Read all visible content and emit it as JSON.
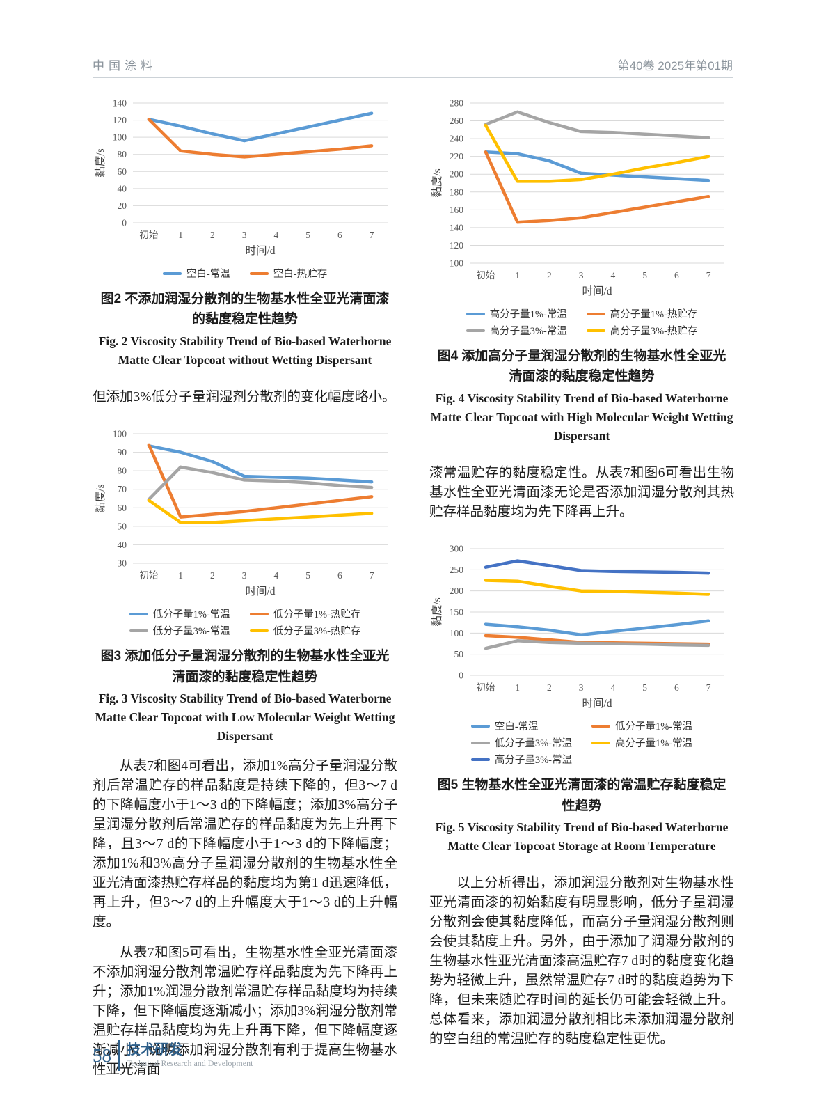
{
  "header": {
    "journal": "中国涂料",
    "issue": "第40卷  2025年第01期"
  },
  "chart_data": [
    {
      "id": "fig2",
      "type": "line",
      "ylabel": "黏度/s",
      "xlabel": "时间/d",
      "categories": [
        "初始",
        "1",
        "2",
        "3",
        "4",
        "5",
        "6",
        "7"
      ],
      "ylim": [
        0,
        140
      ],
      "ytick": 20,
      "grid": true,
      "legend_position": "bottom",
      "legend_cols": 2,
      "series": [
        {
          "name": "空白-常温",
          "color": "#5B9BD5",
          "values": [
            121,
            113,
            104,
            96,
            104,
            112,
            120,
            128
          ]
        },
        {
          "name": "空白-热贮存",
          "color": "#ED7D31",
          "values": [
            121,
            84,
            80,
            77,
            80,
            83,
            86,
            90
          ]
        }
      ],
      "caption_zh": "图2  不添加润湿分散剂的生物基水性全亚光清面漆的黏度稳定性趋势",
      "caption_en": "Fig. 2   Viscosity Stability Trend of Bio-based Waterborne Matte Clear Topcoat without Wetting Dispersant"
    },
    {
      "id": "fig3",
      "type": "line",
      "ylabel": "黏度/s",
      "xlabel": "时间/d",
      "categories": [
        "初始",
        "1",
        "2",
        "3",
        "4",
        "5",
        "6",
        "7"
      ],
      "ylim": [
        30,
        100
      ],
      "ytick": 10,
      "grid": true,
      "legend_position": "bottom",
      "legend_cols": 2,
      "series": [
        {
          "name": "低分子量1%-常温",
          "color": "#5B9BD5",
          "values": [
            93.5,
            90,
            85,
            77,
            76.5,
            76,
            75,
            74
          ]
        },
        {
          "name": "低分子量1%-热贮存",
          "color": "#ED7D31",
          "values": [
            94,
            55,
            56.5,
            58,
            60,
            62,
            64,
            66
          ]
        },
        {
          "name": "低分子量3%-常温",
          "color": "#A5A5A5",
          "values": [
            64.5,
            82,
            79,
            75,
            74.5,
            73.5,
            72,
            71
          ]
        },
        {
          "name": "低分子量3%-热贮存",
          "color": "#FFC000",
          "values": [
            64,
            52,
            52,
            53,
            54,
            55,
            56,
            57
          ]
        }
      ],
      "caption_zh": "图3  添加低分子量润湿分散剂的生物基水性全亚光清面漆的黏度稳定性趋势",
      "caption_en": "Fig. 3   Viscosity Stability Trend of Bio-based Waterborne Matte Clear Topcoat with Low Molecular Weight Wetting Dispersant"
    },
    {
      "id": "fig4",
      "type": "line",
      "ylabel": "黏度/s",
      "xlabel": "时间/d",
      "categories": [
        "初始",
        "1",
        "2",
        "3",
        "4",
        "5",
        "6",
        "7"
      ],
      "ylim": [
        100,
        280
      ],
      "ytick": 20,
      "grid": true,
      "legend_position": "bottom",
      "legend_cols": 2,
      "series": [
        {
          "name": "高分子量1%-常温",
          "color": "#5B9BD5",
          "values": [
            225,
            223,
            215,
            201,
            199,
            197,
            195,
            193
          ]
        },
        {
          "name": "高分子量1%-热贮存",
          "color": "#ED7D31",
          "values": [
            225,
            146,
            148,
            151,
            157,
            163,
            169,
            175
          ]
        },
        {
          "name": "高分子量3%-常温",
          "color": "#A5A5A5",
          "values": [
            256,
            270,
            258,
            248,
            247,
            245,
            243,
            241
          ]
        },
        {
          "name": "高分子量3%-热贮存",
          "color": "#FFC000",
          "values": [
            255,
            192,
            192,
            194,
            200,
            207,
            213,
            220
          ]
        }
      ],
      "caption_zh": "图4  添加高分子量润湿分散剂的生物基水性全亚光清面漆的黏度稳定性趋势",
      "caption_en": "Fig. 4   Viscosity Stability Trend of Bio-based Waterborne Matte Clear Topcoat with High Molecular Weight Wetting Dispersant"
    },
    {
      "id": "fig5",
      "type": "line",
      "ylabel": "黏度/s",
      "xlabel": "时间/d",
      "categories": [
        "初始",
        "1",
        "2",
        "3",
        "4",
        "5",
        "6",
        "7"
      ],
      "ylim": [
        0,
        300
      ],
      "ytick": 50,
      "grid": true,
      "legend_position": "bottom",
      "legend_cols": 2,
      "series": [
        {
          "name": "空白-常温",
          "color": "#5B9BD5",
          "values": [
            121,
            115,
            107,
            96,
            104,
            112,
            120,
            129
          ]
        },
        {
          "name": "低分子量1%-常温",
          "color": "#ED7D31",
          "values": [
            94,
            90,
            84,
            78,
            77,
            76,
            75,
            74
          ]
        },
        {
          "name": "低分子量3%-常温",
          "color": "#A5A5A5",
          "values": [
            64,
            82,
            78,
            76,
            75,
            74,
            72,
            71
          ]
        },
        {
          "name": "高分子量1%-常温",
          "color": "#FFC000",
          "values": [
            225,
            223,
            211,
            200,
            199,
            197,
            195,
            192
          ]
        },
        {
          "name": "高分子量3%-常温",
          "color": "#4472C4",
          "values": [
            256,
            271,
            260,
            248,
            246,
            245,
            244,
            242
          ]
        }
      ],
      "caption_zh": "图5  生物基水性全亚光清面漆的常温贮存黏度稳定性趋势",
      "caption_en": "Fig. 5   Viscosity Stability Trend of Bio-based Waterborne Matte Clear Topcoat Storage at Room Temperature"
    }
  ],
  "body": {
    "left": [
      "但添加3%低分子量润湿剂分散剂的变化幅度略小。",
      "从表7和图4可看出，添加1%高分子量润湿分散剂后常温贮存的样品黏度是持续下降的，但3～7 d的下降幅度小于1～3 d的下降幅度；添加3%高分子量润湿分散剂后常温贮存的样品黏度为先上升再下降，且3～7 d的下降幅度小于1～3 d的下降幅度；添加1%和3%高分子量润湿分散剂的生物基水性全亚光清面漆热贮存样品的黏度均为第1 d迅速降低，再上升，但3～7 d的上升幅度大于1～3 d的上升幅度。",
      "从表7和图5可看出，生物基水性全亚光清面漆不添加润湿分散剂常温贮存样品黏度为先下降再上升；添加1%润湿分散剂常温贮存样品黏度均为持续下降，但下降幅度逐渐减小；添加3%润湿分散剂常温贮存样品黏度均为先上升再下降，但下降幅度逐渐减小；说明添加润湿分散剂有利于提高生物基水性亚光清面"
    ],
    "right": [
      "漆常温贮存的黏度稳定性。从表7和图6可看出生物基水性全亚光清面漆无论是否添加润湿分散剂其热贮存样品黏度均为先下降再上升。",
      "以上分析得出，添加润湿分散剂对生物基水性亚光清面漆的初始黏度有明显影响，低分子量润湿分散剂会使其黏度降低，而高分子量润湿分散剂则会使其黏度上升。另外，由于添加了润湿分散剂的生物基水性亚光清面漆高温贮存7 d时的黏度变化趋势为轻微上升，虽然常温贮存7 d时的黏度趋势为下降，但未来随贮存时间的延长仍可能会轻微上升。总体看来，添加润湿分散剂相比未添加润湿分散剂的空白组的常温贮存的黏度稳定性更优。"
    ]
  },
  "footer": {
    "page_number": "58",
    "section_zh": "技术研发",
    "section_en": "Technical Research and Development"
  },
  "colors": {
    "blue": "#5B9BD5",
    "orange": "#ED7D31",
    "gray": "#A5A5A5",
    "yellow": "#FFC000",
    "dark_blue": "#4472C4",
    "grid": "#D9D9D9",
    "accent": "#2E5F8A"
  }
}
